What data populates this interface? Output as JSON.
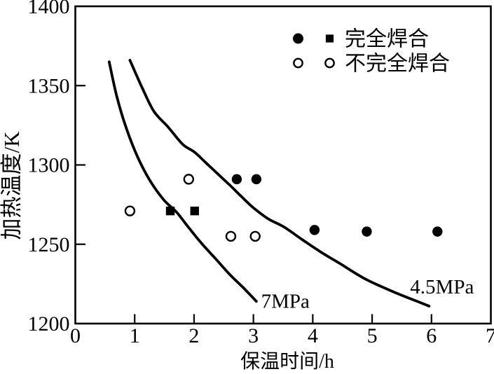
{
  "figure": {
    "background": "#ffffff",
    "ink": "#000000"
  },
  "chart_data": {
    "type": "scatter",
    "title": "",
    "xlabel": "保温时间/h",
    "ylabel": "加热温度/K",
    "xlim": [
      0,
      7
    ],
    "ylim": [
      1200,
      1400
    ],
    "x_ticks": [
      0,
      1,
      2,
      3,
      4,
      5,
      6,
      7
    ],
    "y_ticks": [
      1200,
      1250,
      1300,
      1350,
      1400
    ],
    "grid": false,
    "legend": {
      "position": "top-right-inside",
      "entries": [
        {
          "label": "完全焊合",
          "markers": [
            "filled-circle",
            "filled-square"
          ]
        },
        {
          "label": "不完全焊合",
          "markers": [
            "open-circle",
            "open-circle"
          ]
        }
      ]
    },
    "series": [
      {
        "name": "完全焊合",
        "marker": "filled-circle",
        "points": [
          [
            2.72,
            1291
          ],
          [
            3.05,
            1291
          ],
          [
            4.03,
            1259
          ],
          [
            4.91,
            1258
          ],
          [
            6.1,
            1258
          ]
        ]
      },
      {
        "name": "完全焊合",
        "marker": "filled-square",
        "points": [
          [
            1.6,
            1271
          ],
          [
            2.01,
            1271
          ]
        ]
      },
      {
        "name": "不完全焊合",
        "marker": "open-circle",
        "points": [
          [
            0.92,
            1271
          ],
          [
            1.91,
            1291
          ],
          [
            2.62,
            1255
          ],
          [
            3.03,
            1255
          ]
        ]
      }
    ],
    "curves": [
      {
        "name": "7MPa",
        "points": [
          [
            0.57,
            1365
          ],
          [
            0.7,
            1343
          ],
          [
            0.86,
            1323
          ],
          [
            1.05,
            1305
          ],
          [
            1.26,
            1290
          ],
          [
            1.49,
            1278
          ],
          [
            1.71,
            1270
          ],
          [
            1.92,
            1260
          ],
          [
            2.14,
            1250
          ],
          [
            2.36,
            1241
          ],
          [
            2.6,
            1231
          ],
          [
            2.82,
            1223
          ],
          [
            3.05,
            1214
          ]
        ]
      },
      {
        "name": "4.5MPa",
        "points": [
          [
            0.92,
            1366
          ],
          [
            1.11,
            1350
          ],
          [
            1.32,
            1334
          ],
          [
            1.56,
            1324
          ],
          [
            1.81,
            1313
          ],
          [
            2.01,
            1308
          ],
          [
            2.21,
            1301
          ],
          [
            2.41,
            1294
          ],
          [
            2.61,
            1287
          ],
          [
            2.8,
            1280
          ],
          [
            3.0,
            1273
          ],
          [
            3.25,
            1266
          ],
          [
            3.51,
            1261
          ],
          [
            3.82,
            1253
          ],
          [
            4.14,
            1245
          ],
          [
            4.45,
            1238
          ],
          [
            4.89,
            1228
          ],
          [
            5.36,
            1220
          ],
          [
            5.83,
            1213
          ],
          [
            5.96,
            1211
          ]
        ]
      }
    ],
    "annotations": [
      {
        "text": "7MPa",
        "x": 3.13,
        "y": 1210
      },
      {
        "text": "4.5MPa",
        "x": 5.64,
        "y": 1219
      }
    ]
  }
}
